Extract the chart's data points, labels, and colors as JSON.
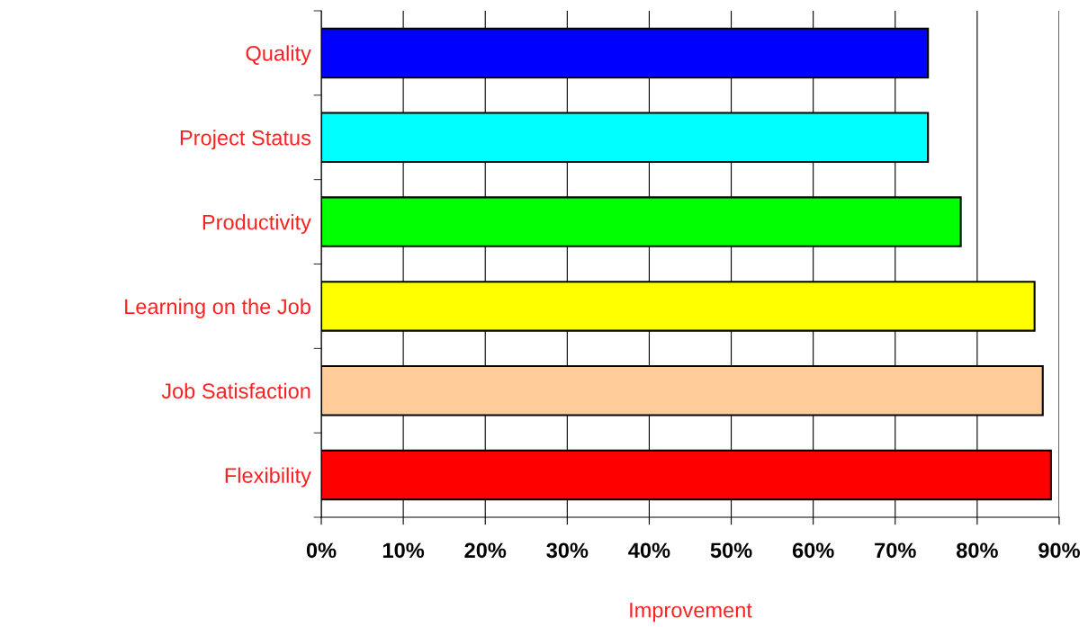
{
  "chart_data": {
    "type": "bar",
    "orientation": "horizontal",
    "xlabel": "Improvement",
    "categories": [
      "Quality",
      "Project Status",
      "Productivity",
      "Learning on the Job",
      "Job Satisfaction",
      "Flexibility"
    ],
    "values": [
      0.74,
      0.74,
      0.78,
      0.87,
      0.88,
      0.89
    ],
    "colors": [
      "#0000ff",
      "#00ffff",
      "#00ff00",
      "#ffff00",
      "#ffcc99",
      "#ff0000"
    ],
    "xlim": [
      0,
      0.9
    ],
    "xticks": [
      {
        "value": 0,
        "label": "0%"
      },
      {
        "value": 0.1,
        "label": "10%"
      },
      {
        "value": 0.2,
        "label": "20%"
      },
      {
        "value": 0.3,
        "label": "30%"
      },
      {
        "value": 0.4,
        "label": "40%"
      },
      {
        "value": 0.5,
        "label": "50%"
      },
      {
        "value": 0.6,
        "label": "60%"
      },
      {
        "value": 0.7,
        "label": "70%"
      },
      {
        "value": 0.8,
        "label": "80%"
      },
      {
        "value": 0.9,
        "label": "90%"
      }
    ],
    "grid": "x",
    "legend": false
  }
}
